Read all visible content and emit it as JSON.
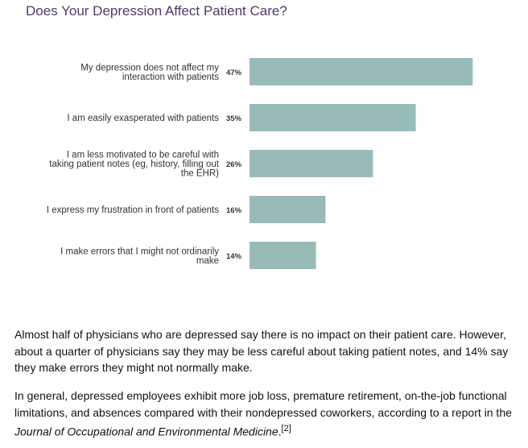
{
  "chart_data": {
    "type": "bar",
    "orientation": "horizontal",
    "title": "Does Your Depression Affect Patient Care?",
    "categories": [
      [
        "My depression does not affect my",
        "interaction with patients"
      ],
      [
        "I am easily exasperated with patients"
      ],
      [
        "I am less motivated to be careful with",
        "taking patient notes (eg, history, filling out",
        "the EHR)"
      ],
      [
        "I express my frustration in front of patients"
      ],
      [
        "I make errors that I might not ordinarily",
        "make"
      ]
    ],
    "values": [
      47,
      35,
      26,
      16,
      14
    ],
    "value_labels": [
      "47%",
      "35%",
      "26%",
      "16%",
      "14%"
    ],
    "xlim": [
      0,
      50
    ],
    "bar_color": "#97bcb8"
  },
  "article": {
    "para1": "Almost half of physicians who are depressed say there is no impact on their patient care. However, about a quarter of physicians say they may be less careful about taking patient notes, and 14% say they make errors they might not normally make.",
    "para2_before": "In general, depressed employees exhibit more job loss, premature retirement, on-the-job functional limitations, and absences compared with their nondepressed coworkers, according to a report in the ",
    "para2_journal": "Journal of Occupational and Environmental Medicine",
    "para2_after": ".",
    "para2_ref": "[2]"
  }
}
